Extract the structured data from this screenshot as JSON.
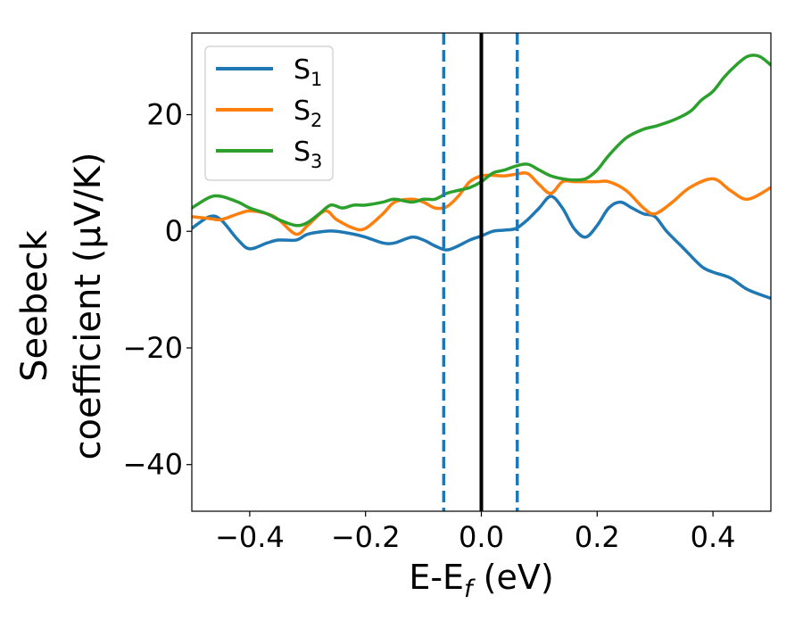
{
  "chart_data": {
    "type": "line",
    "xlabel_parts": {
      "main": "E-E",
      "sub": "f",
      "tail": " (eV)"
    },
    "ylabel_lines": [
      "Seebeck",
      "coefficient  (μV/K)"
    ],
    "xlim": [
      -0.5,
      0.5
    ],
    "ylim": [
      -48,
      34
    ],
    "xticks": [
      -0.4,
      -0.2,
      0.0,
      0.2,
      0.4
    ],
    "xtick_labels": [
      "−0.4",
      "−0.2",
      "0.0",
      "0.2",
      "0.4"
    ],
    "yticks": [
      -40,
      -20,
      0,
      20
    ],
    "ytick_labels": [
      "−40",
      "−20",
      "0",
      "20"
    ],
    "grid": false,
    "legend_position": "top-left",
    "vlines": [
      {
        "x": 0.0,
        "style": "solid",
        "color": "#000000"
      },
      {
        "x": -0.065,
        "style": "dashed",
        "color": "#1f77b4"
      },
      {
        "x": 0.062,
        "style": "dashed",
        "color": "#1f77b4"
      }
    ],
    "series": [
      {
        "legend_main": "S",
        "legend_sub": "1",
        "color": "#1f77b4",
        "x": [
          -0.5,
          -0.47,
          -0.45,
          -0.42,
          -0.4,
          -0.37,
          -0.35,
          -0.32,
          -0.3,
          -0.27,
          -0.25,
          -0.22,
          -0.2,
          -0.17,
          -0.15,
          -0.12,
          -0.1,
          -0.08,
          -0.06,
          -0.04,
          -0.02,
          0.0,
          0.02,
          0.04,
          0.06,
          0.08,
          0.1,
          0.12,
          0.14,
          0.16,
          0.18,
          0.2,
          0.22,
          0.24,
          0.26,
          0.28,
          0.3,
          0.32,
          0.35,
          0.38,
          0.4,
          0.43,
          0.46,
          0.5
        ],
        "y": [
          0.5,
          2.5,
          2.0,
          -1.5,
          -3.0,
          -2.0,
          -1.5,
          -1.5,
          -0.5,
          0.0,
          0.0,
          -0.5,
          -1.0,
          -2.0,
          -2.0,
          -1.0,
          -1.5,
          -2.5,
          -3.2,
          -2.5,
          -1.5,
          -0.8,
          0.0,
          0.2,
          0.5,
          2.0,
          4.0,
          6.0,
          4.0,
          0.5,
          -1.0,
          1.0,
          4.0,
          5.0,
          4.0,
          3.0,
          2.5,
          0.0,
          -3.0,
          -6.0,
          -7.0,
          -8.0,
          -10.0,
          -11.5
        ]
      },
      {
        "legend_main": "S",
        "legend_sub": "2",
        "color": "#ff7f0e",
        "x": [
          -0.5,
          -0.47,
          -0.45,
          -0.42,
          -0.4,
          -0.37,
          -0.35,
          -0.32,
          -0.3,
          -0.27,
          -0.25,
          -0.22,
          -0.2,
          -0.17,
          -0.15,
          -0.12,
          -0.1,
          -0.08,
          -0.06,
          -0.04,
          -0.02,
          0.0,
          0.02,
          0.04,
          0.06,
          0.08,
          0.1,
          0.12,
          0.14,
          0.16,
          0.18,
          0.2,
          0.22,
          0.25,
          0.28,
          0.3,
          0.33,
          0.36,
          0.4,
          0.43,
          0.46,
          0.5
        ],
        "y": [
          2.5,
          2.2,
          2.0,
          3.0,
          3.5,
          3.0,
          2.0,
          -0.5,
          1.0,
          3.5,
          2.0,
          0.5,
          0.5,
          3.0,
          5.0,
          5.5,
          5.0,
          4.0,
          4.2,
          6.0,
          8.5,
          9.5,
          9.6,
          9.5,
          9.8,
          9.9,
          8.0,
          6.5,
          8.5,
          8.5,
          8.5,
          8.5,
          8.5,
          7.0,
          4.0,
          3.0,
          5.0,
          7.5,
          9.0,
          7.0,
          5.5,
          7.5
        ]
      },
      {
        "legend_main": "S",
        "legend_sub": "3",
        "color": "#2ca02c",
        "x": [
          -0.5,
          -0.47,
          -0.45,
          -0.42,
          -0.4,
          -0.37,
          -0.35,
          -0.32,
          -0.3,
          -0.28,
          -0.26,
          -0.24,
          -0.22,
          -0.2,
          -0.17,
          -0.15,
          -0.12,
          -0.1,
          -0.08,
          -0.06,
          -0.04,
          -0.02,
          0.0,
          0.02,
          0.04,
          0.06,
          0.08,
          0.1,
          0.12,
          0.14,
          0.16,
          0.18,
          0.2,
          0.22,
          0.25,
          0.28,
          0.3,
          0.33,
          0.36,
          0.38,
          0.4,
          0.42,
          0.44,
          0.46,
          0.48,
          0.5
        ],
        "y": [
          4.0,
          5.8,
          6.0,
          5.0,
          4.0,
          3.0,
          2.0,
          1.0,
          1.5,
          3.0,
          4.5,
          4.0,
          4.5,
          4.5,
          5.0,
          5.5,
          5.0,
          5.5,
          5.5,
          6.5,
          7.0,
          7.5,
          8.5,
          10.0,
          10.5,
          11.2,
          11.5,
          10.5,
          9.5,
          9.0,
          8.8,
          9.0,
          10.5,
          13.0,
          16.0,
          17.5,
          18.0,
          19.0,
          20.5,
          22.5,
          24.0,
          26.5,
          28.5,
          30.0,
          30.0,
          28.5
        ]
      }
    ]
  }
}
